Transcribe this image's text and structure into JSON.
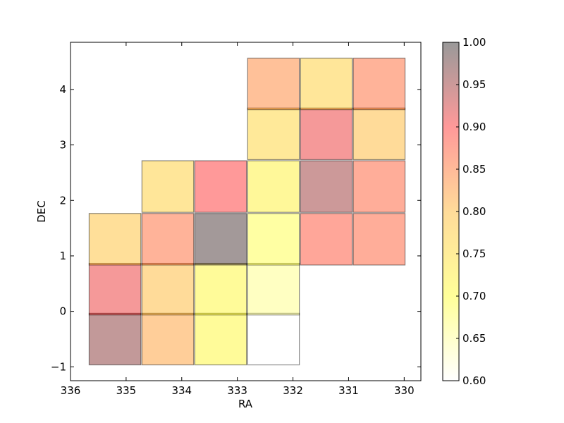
{
  "chart_data": {
    "type": "heatmap",
    "title": "",
    "xlabel": "RA",
    "ylabel": "DEC",
    "xlim": [
      336.0,
      329.7
    ],
    "ylim": [
      -1.25,
      4.85
    ],
    "x_ticks": [
      336,
      335,
      334,
      333,
      332,
      331,
      330
    ],
    "x_tick_labels": [
      "336",
      "335",
      "334",
      "333",
      "332",
      "331",
      "330"
    ],
    "y_ticks": [
      -1,
      0,
      1,
      2,
      3,
      4
    ],
    "y_tick_labels": [
      "−1",
      "0",
      "1",
      "2",
      "3",
      "4"
    ],
    "cell_width": 0.93,
    "cell_height": 0.93,
    "colormap": "hot_r (white → yellow → orange → red → black)",
    "cell_opacity": 0.4,
    "colorbar": {
      "range": [
        0.6,
        1.0
      ],
      "ticks": [
        0.6,
        0.65,
        0.7,
        0.75,
        0.8,
        0.85,
        0.9,
        0.95,
        1.0
      ],
      "tick_labels": [
        "0.60",
        "0.65",
        "0.70",
        "0.75",
        "0.80",
        "0.85",
        "0.90",
        "0.95",
        "1.00"
      ],
      "placement": "right"
    },
    "cells": [
      {
        "ra": 335.2,
        "dec": -0.5,
        "value": 0.96
      },
      {
        "ra": 335.2,
        "dec": 0.4,
        "value": 0.91
      },
      {
        "ra": 335.2,
        "dec": 1.3,
        "value": 0.79
      },
      {
        "ra": 334.25,
        "dec": -0.5,
        "value": 0.82
      },
      {
        "ra": 334.25,
        "dec": 0.4,
        "value": 0.8
      },
      {
        "ra": 334.25,
        "dec": 1.3,
        "value": 0.86
      },
      {
        "ra": 334.25,
        "dec": 2.25,
        "value": 0.77
      },
      {
        "ra": 333.3,
        "dec": -0.5,
        "value": 0.71
      },
      {
        "ra": 333.3,
        "dec": 0.4,
        "value": 0.71
      },
      {
        "ra": 333.3,
        "dec": 1.3,
        "value": 0.99
      },
      {
        "ra": 333.3,
        "dec": 2.25,
        "value": 0.9
      },
      {
        "ra": 332.35,
        "dec": -0.5,
        "value": 0.6
      },
      {
        "ra": 332.35,
        "dec": 0.4,
        "value": 0.66
      },
      {
        "ra": 332.35,
        "dec": 1.3,
        "value": 0.69
      },
      {
        "ra": 332.35,
        "dec": 2.25,
        "value": 0.72
      },
      {
        "ra": 332.35,
        "dec": 3.2,
        "value": 0.76
      },
      {
        "ra": 332.35,
        "dec": 4.1,
        "value": 0.84
      },
      {
        "ra": 331.4,
        "dec": 1.3,
        "value": 0.88
      },
      {
        "ra": 331.4,
        "dec": 2.25,
        "value": 0.95
      },
      {
        "ra": 331.4,
        "dec": 3.2,
        "value": 0.91
      },
      {
        "ra": 331.4,
        "dec": 4.1,
        "value": 0.77
      },
      {
        "ra": 330.45,
        "dec": 1.3,
        "value": 0.87
      },
      {
        "ra": 330.45,
        "dec": 2.25,
        "value": 0.87
      },
      {
        "ra": 330.45,
        "dec": 3.2,
        "value": 0.8
      },
      {
        "ra": 330.45,
        "dec": 4.1,
        "value": 0.86
      }
    ]
  }
}
